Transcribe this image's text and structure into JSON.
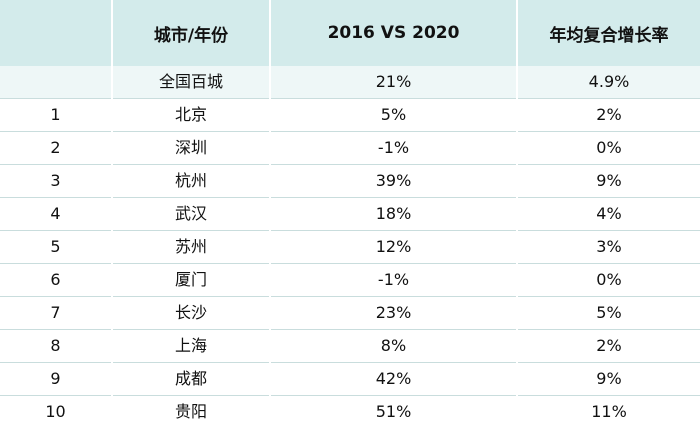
{
  "table": {
    "headers": {
      "rank": "",
      "city": "城市/年份",
      "change": "2016 VS 2020",
      "cagr": "年均复合增长率"
    },
    "rows": [
      {
        "rank": "",
        "city": "全国百城",
        "change": "21%",
        "cagr": "4.9%"
      },
      {
        "rank": "1",
        "city": "北京",
        "change": "5%",
        "cagr": "2%"
      },
      {
        "rank": "2",
        "city": "深圳",
        "change": "-1%",
        "cagr": "0%"
      },
      {
        "rank": "3",
        "city": "杭州",
        "change": "39%",
        "cagr": "9%"
      },
      {
        "rank": "4",
        "city": "武汉",
        "change": "18%",
        "cagr": "4%"
      },
      {
        "rank": "5",
        "city": "苏州",
        "change": "12%",
        "cagr": "3%"
      },
      {
        "rank": "6",
        "city": "厦门",
        "change": "-1%",
        "cagr": "0%"
      },
      {
        "rank": "7",
        "city": "长沙",
        "change": "23%",
        "cagr": "5%"
      },
      {
        "rank": "8",
        "city": "上海",
        "change": "8%",
        "cagr": "2%"
      },
      {
        "rank": "9",
        "city": "成都",
        "change": "42%",
        "cagr": "9%"
      },
      {
        "rank": "10",
        "city": "贵阳",
        "change": "51%",
        "cagr": "11%"
      }
    ]
  },
  "colors": {
    "header_bg": "#d3ebeb",
    "summary_bg": "#eef7f7",
    "divider": "#c9dddd"
  }
}
